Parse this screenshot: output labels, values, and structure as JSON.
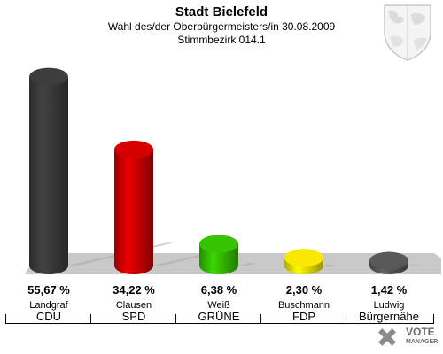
{
  "header": {
    "title": "Stadt Bielefeld",
    "subtitle": "Wahl des/der Oberbürgermeisters/in 30.08.2009",
    "district": "Stimmbezirk 014.1"
  },
  "chart_data": {
    "type": "bar",
    "title": "Stadt Bielefeld",
    "categories": [
      "CDU",
      "SPD",
      "GRÜNE",
      "FDP",
      "Bürgernähe"
    ],
    "candidates": [
      "Landgraf",
      "Clausen",
      "Weiß",
      "Buschmann",
      "Ludwig"
    ],
    "labels": [
      "55,67 %",
      "34,22 %",
      "6,38 %",
      "2,30 %",
      "1,42 %"
    ],
    "series": [
      {
        "values": [
          55.67,
          34.22,
          6.38,
          2.3,
          1.42
        ]
      }
    ],
    "colors": [
      "#3a3a3a",
      "#cc0000",
      "#33bb00",
      "#eedd00",
      "#555555"
    ],
    "ylim": [
      0,
      60
    ],
    "grid": false,
    "legend": "none",
    "style": "3d-cylinder"
  },
  "logo": {
    "line1": "VOTE",
    "line2": "MANAGER",
    "icon": "vote-manager-logo"
  },
  "crest": {
    "icon": "city-coat-of-arms-icon"
  }
}
